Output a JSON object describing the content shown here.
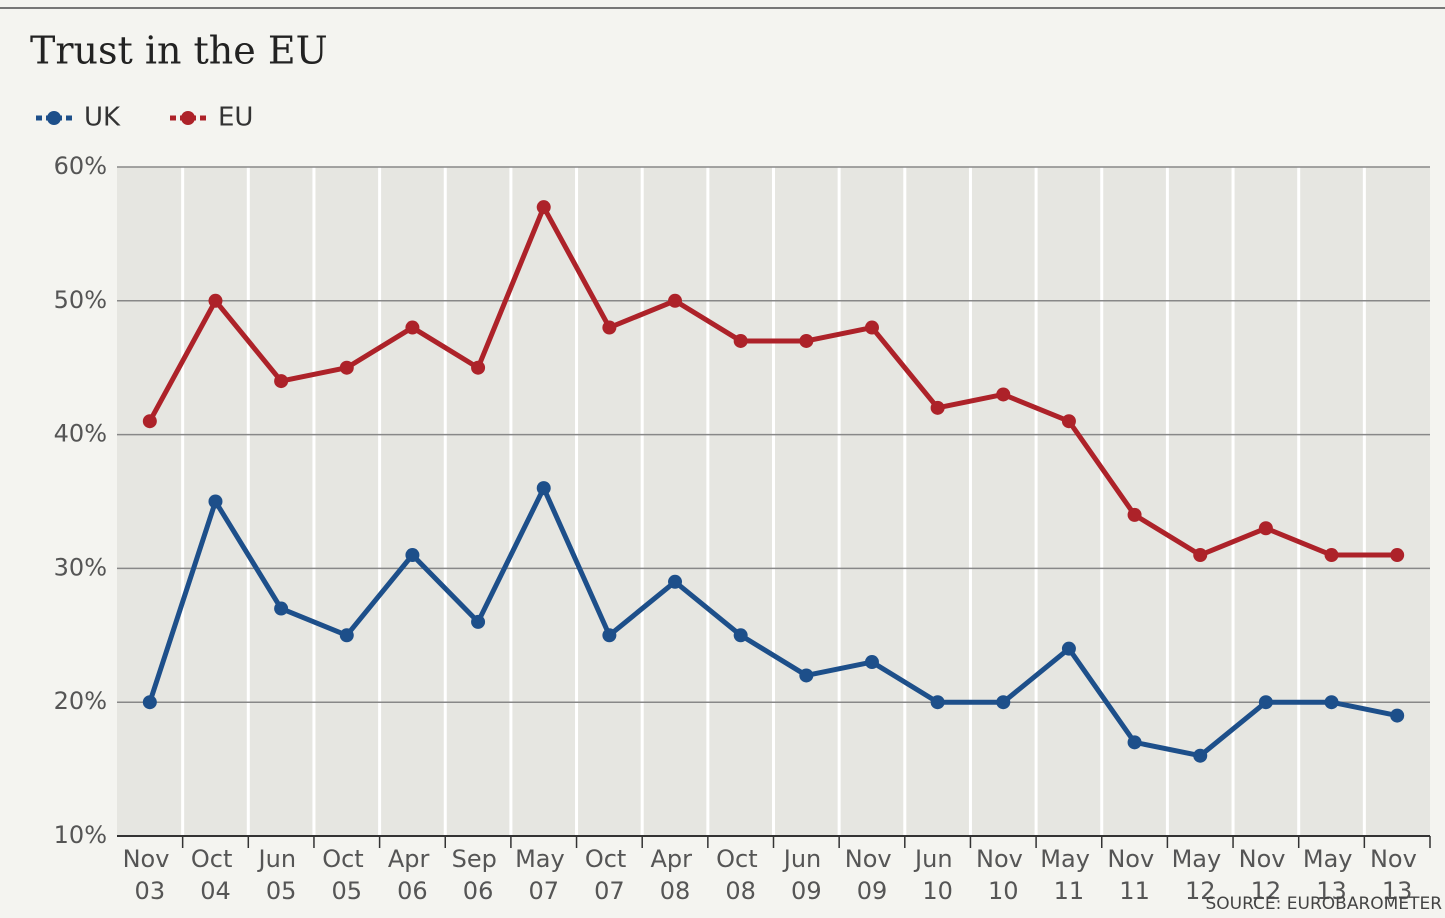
{
  "chart_data": {
    "type": "line",
    "title": "Trust in the EU",
    "categories": [
      "Nov 03",
      "Oct 04",
      "Jun 05",
      "Oct 05",
      "Apr 06",
      "Sep 06",
      "May 07",
      "Oct 07",
      "Apr 08",
      "Oct 08",
      "Jun 09",
      "Nov 09",
      "Jun 10",
      "Nov 10",
      "May 11",
      "Nov 11",
      "May 12",
      "Nov 12",
      "May 13",
      "Nov 13"
    ],
    "series": [
      {
        "name": "UK",
        "color": "#1d4f8a",
        "values": [
          20,
          35,
          27,
          25,
          31,
          26,
          36,
          25,
          29,
          25,
          22,
          23,
          20,
          20,
          24,
          17,
          16,
          20,
          20,
          19
        ]
      },
      {
        "name": "EU",
        "color": "#ad2229",
        "values": [
          41,
          50,
          44,
          45,
          48,
          45,
          57,
          48,
          50,
          47,
          47,
          48,
          42,
          43,
          41,
          34,
          31,
          33,
          31,
          31
        ]
      }
    ],
    "ylim": [
      10,
      60
    ],
    "yticks": [
      {
        "value": 10,
        "label": "10%"
      },
      {
        "value": 20,
        "label": "20%"
      },
      {
        "value": 30,
        "label": "30%"
      },
      {
        "value": 40,
        "label": "40%"
      },
      {
        "value": 50,
        "label": "50%"
      },
      {
        "value": 60,
        "label": "60%"
      }
    ],
    "grid": true,
    "source": "SOURCE: EUROBAROMETER"
  }
}
